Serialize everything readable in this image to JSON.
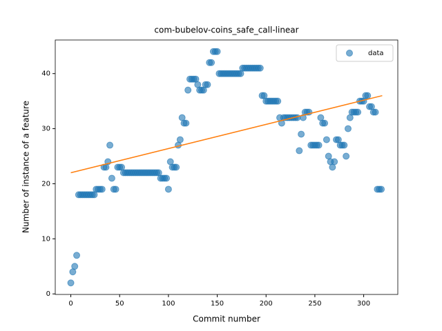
{
  "chart_data": {
    "type": "scatter",
    "title": "com-bubelov-coins_safe_call-linear",
    "x_label": "Commit number",
    "y_label": "Number of instance of a feature",
    "series": [
      {
        "name": "data",
        "color": "#1f77b4",
        "x": [
          0,
          2,
          4,
          6,
          8,
          10,
          12,
          14,
          16,
          18,
          20,
          22,
          24,
          26,
          28,
          30,
          32,
          34,
          36,
          38,
          40,
          42,
          44,
          46,
          48,
          50,
          52,
          54,
          56,
          58,
          60,
          62,
          64,
          66,
          68,
          70,
          72,
          74,
          76,
          78,
          80,
          82,
          84,
          86,
          88,
          90,
          92,
          94,
          96,
          98,
          100,
          102,
          104,
          106,
          108,
          110,
          112,
          114,
          116,
          118,
          120,
          122,
          124,
          126,
          128,
          130,
          132,
          134,
          136,
          138,
          140,
          142,
          144,
          146,
          148,
          150,
          152,
          154,
          156,
          158,
          160,
          162,
          164,
          166,
          168,
          170,
          172,
          174,
          176,
          178,
          180,
          182,
          184,
          186,
          188,
          190,
          192,
          194,
          196,
          198,
          200,
          202,
          204,
          206,
          208,
          210,
          212,
          214,
          216,
          218,
          220,
          222,
          224,
          226,
          228,
          230,
          232,
          234,
          236,
          238,
          240,
          242,
          244,
          246,
          248,
          250,
          252,
          254,
          256,
          258,
          260,
          262,
          264,
          266,
          268,
          270,
          272,
          274,
          276,
          278,
          280,
          282,
          284,
          286,
          288,
          290,
          292,
          294,
          296,
          298,
          300,
          302,
          304,
          306,
          308,
          310,
          312,
          314,
          316,
          318
        ],
        "values": [
          2,
          4,
          5,
          7,
          18,
          18,
          18,
          18,
          18,
          18,
          18,
          18,
          18,
          19,
          19,
          19,
          19,
          23,
          23,
          24,
          27,
          21,
          19,
          19,
          23,
          23,
          23,
          22,
          22,
          22,
          22,
          22,
          22,
          22,
          22,
          22,
          22,
          22,
          22,
          22,
          22,
          22,
          22,
          22,
          22,
          22,
          21,
          21,
          21,
          21,
          19,
          24,
          23,
          23,
          23,
          27,
          28,
          32,
          31,
          31,
          37,
          39,
          39,
          39,
          39,
          38,
          37,
          37,
          37,
          38,
          38,
          42,
          42,
          44,
          44,
          44,
          40,
          40,
          40,
          40,
          40,
          40,
          40,
          40,
          40,
          40,
          40,
          40,
          41,
          41,
          41,
          41,
          41,
          41,
          41,
          41,
          41,
          41,
          36,
          36,
          35,
          35,
          35,
          35,
          35,
          35,
          35,
          32,
          31,
          32,
          32,
          32,
          32,
          32,
          32,
          32,
          32,
          26,
          29,
          32,
          33,
          33,
          33,
          27,
          27,
          27,
          27,
          27,
          32,
          31,
          31,
          28,
          25,
          24,
          23,
          24,
          28,
          28,
          27,
          27,
          27,
          25,
          30,
          32,
          33,
          33,
          33,
          33,
          35,
          35,
          35,
          36,
          36,
          34,
          34,
          33,
          33,
          19,
          19,
          19
        ]
      }
    ],
    "fit": {
      "color": "#ff7f0e",
      "x": [
        0,
        319
      ],
      "values": [
        22,
        36
      ]
    },
    "xlim": [
      -15.95,
      334.95
    ],
    "ylim": [
      -0.1,
      46.1
    ],
    "xticks": [
      0,
      50,
      100,
      150,
      200,
      250,
      300
    ],
    "yticks": [
      0,
      10,
      20,
      30,
      40
    ],
    "legend": "upper right"
  }
}
